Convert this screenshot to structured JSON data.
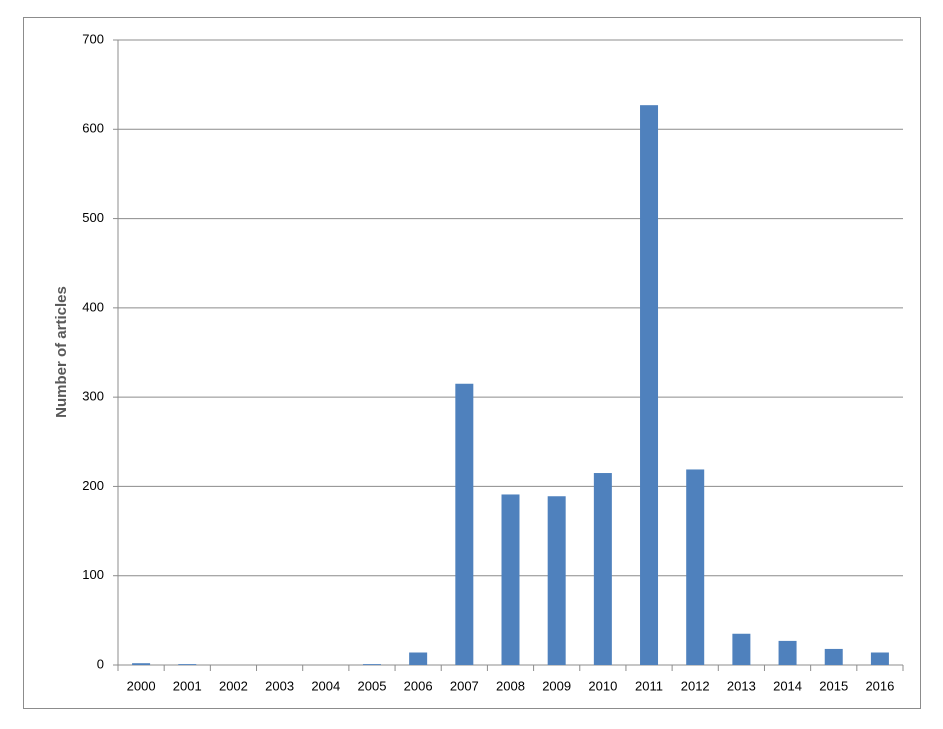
{
  "chart_data": {
    "type": "bar",
    "y_label": "Number of articles",
    "categories": [
      "2000",
      "2001",
      "2002",
      "2003",
      "2004",
      "2005",
      "2006",
      "2007",
      "2008",
      "2009",
      "2010",
      "2011",
      "2012",
      "2013",
      "2014",
      "2015",
      "2016"
    ],
    "values": [
      2,
      1,
      0,
      0,
      0,
      1,
      14,
      315,
      191,
      189,
      215,
      627,
      219,
      35,
      27,
      18,
      14
    ],
    "color": "#4f81bd",
    "ylim": [
      0,
      700
    ],
    "yticks": [
      0,
      100,
      200,
      300,
      400,
      500,
      600,
      700
    ],
    "grid": true
  }
}
